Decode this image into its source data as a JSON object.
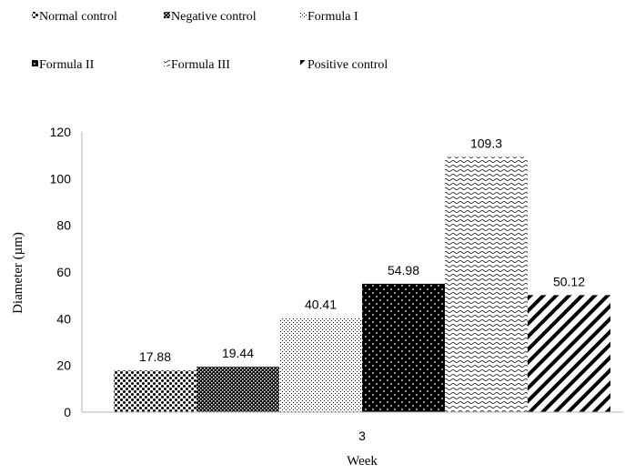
{
  "chart_data": {
    "type": "bar",
    "categories": [
      "3"
    ],
    "series": [
      {
        "name": "Normal control",
        "values": [
          17.88
        ],
        "pattern": "dots-coarse"
      },
      {
        "name": "Negative control",
        "values": [
          19.44
        ],
        "pattern": "checker"
      },
      {
        "name": "Formula I",
        "values": [
          40.41
        ],
        "pattern": "dots-fine"
      },
      {
        "name": "Formula II",
        "values": [
          54.98
        ],
        "pattern": "dots-on-black"
      },
      {
        "name": "Formula III",
        "values": [
          109.3
        ],
        "pattern": "wave"
      },
      {
        "name": "Positive control",
        "values": [
          50.12
        ],
        "pattern": "diagonal-stripes"
      }
    ],
    "data_labels": [
      "17.88",
      "19.44",
      "40.41",
      "54.98",
      "109.3",
      "50.12"
    ],
    "xlabel": "Week",
    "ylabel": "Diameter (µm)",
    "ylim": [
      0,
      120
    ],
    "yticks": [
      "0",
      "20",
      "40",
      "60",
      "80",
      "100",
      "120"
    ],
    "grid": false,
    "legend_position": "top"
  }
}
